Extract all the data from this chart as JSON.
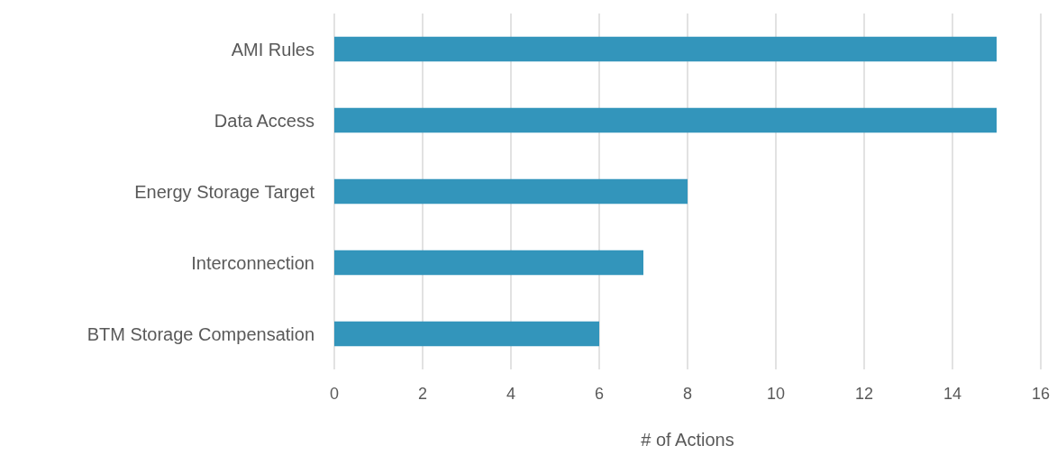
{
  "chart_data": {
    "type": "bar",
    "orientation": "horizontal",
    "xlabel": "# of Actions",
    "categories": [
      "AMI Rules",
      "Data Access",
      "Energy Storage Target",
      "Interconnection",
      "BTM Storage Compensation"
    ],
    "values": [
      15,
      15,
      8,
      7,
      6
    ],
    "color": "#3395bb",
    "xlim": [
      0,
      16
    ],
    "xticks": [
      0,
      2,
      4,
      6,
      8,
      10,
      12,
      14,
      16
    ],
    "grid": "x"
  }
}
